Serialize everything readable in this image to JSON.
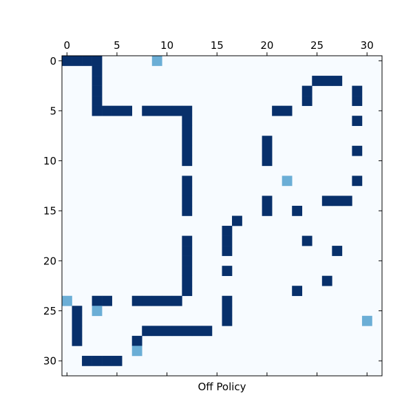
{
  "chart_data": {
    "type": "heatmap",
    "xlabel": "Off Policy",
    "x_ticks": [
      0,
      5,
      10,
      15,
      20,
      25,
      30
    ],
    "y_ticks": [
      0,
      5,
      10,
      15,
      20,
      25,
      30
    ],
    "grid_size": 32,
    "x_axis_position": "top",
    "grid": false,
    "colormap": "Blues",
    "colors": {
      "background": "#f7fbff",
      "strong": "#08306b",
      "medium": "#6baed6",
      "frame": "#000000"
    },
    "cells_strong": [
      [
        0,
        0
      ],
      [
        0,
        1
      ],
      [
        0,
        2
      ],
      [
        0,
        3
      ],
      [
        1,
        3
      ],
      [
        2,
        3
      ],
      [
        3,
        3
      ],
      [
        4,
        3
      ],
      [
        5,
        3
      ],
      [
        5,
        4
      ],
      [
        5,
        5
      ],
      [
        5,
        6
      ],
      [
        5,
        8
      ],
      [
        5,
        9
      ],
      [
        5,
        10
      ],
      [
        5,
        11
      ],
      [
        5,
        12
      ],
      [
        6,
        12
      ],
      [
        7,
        12
      ],
      [
        8,
        12
      ],
      [
        9,
        12
      ],
      [
        10,
        12
      ],
      [
        12,
        12
      ],
      [
        13,
        12
      ],
      [
        14,
        12
      ],
      [
        15,
        12
      ],
      [
        18,
        12
      ],
      [
        19,
        12
      ],
      [
        20,
        12
      ],
      [
        21,
        12
      ],
      [
        22,
        12
      ],
      [
        23,
        12
      ],
      [
        24,
        3
      ],
      [
        24,
        4
      ],
      [
        24,
        7
      ],
      [
        24,
        8
      ],
      [
        24,
        9
      ],
      [
        24,
        10
      ],
      [
        24,
        11
      ],
      [
        25,
        1
      ],
      [
        26,
        1
      ],
      [
        27,
        1
      ],
      [
        28,
        1
      ],
      [
        27,
        8
      ],
      [
        27,
        9
      ],
      [
        27,
        10
      ],
      [
        27,
        11
      ],
      [
        27,
        12
      ],
      [
        27,
        13
      ],
      [
        27,
        14
      ],
      [
        28,
        7
      ],
      [
        30,
        2
      ],
      [
        30,
        3
      ],
      [
        30,
        4
      ],
      [
        30,
        5
      ],
      [
        16,
        17
      ],
      [
        17,
        16
      ],
      [
        18,
        16
      ],
      [
        19,
        16
      ],
      [
        21,
        16
      ],
      [
        24,
        16
      ],
      [
        25,
        16
      ],
      [
        26,
        16
      ],
      [
        8,
        20
      ],
      [
        9,
        20
      ],
      [
        10,
        20
      ],
      [
        14,
        20
      ],
      [
        15,
        20
      ],
      [
        5,
        21
      ],
      [
        5,
        22
      ],
      [
        2,
        25
      ],
      [
        2,
        26
      ],
      [
        2,
        27
      ],
      [
        3,
        24
      ],
      [
        4,
        24
      ],
      [
        3,
        29
      ],
      [
        4,
        29
      ],
      [
        6,
        29
      ],
      [
        9,
        29
      ],
      [
        12,
        29
      ],
      [
        14,
        26
      ],
      [
        14,
        27
      ],
      [
        14,
        28
      ],
      [
        15,
        23
      ],
      [
        18,
        24
      ],
      [
        19,
        27
      ],
      [
        22,
        26
      ],
      [
        23,
        23
      ]
    ],
    "cells_medium": [
      [
        0,
        9
      ],
      [
        12,
        22
      ],
      [
        24,
        0
      ],
      [
        25,
        3
      ],
      [
        26,
        30
      ],
      [
        29,
        7
      ]
    ]
  }
}
